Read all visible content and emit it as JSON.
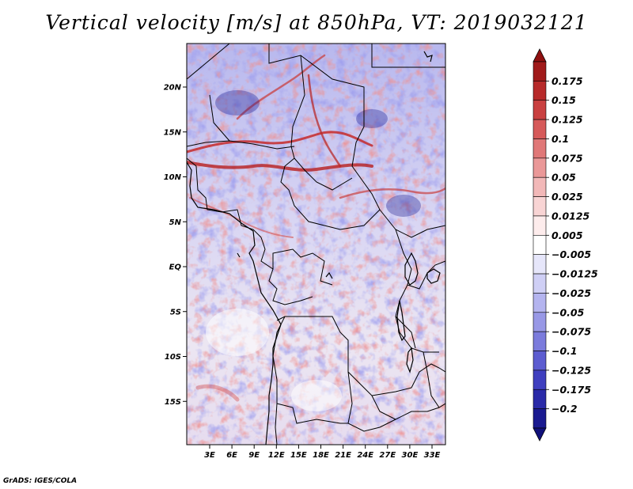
{
  "title": "Vertical velocity [m/s] at 850hPa, VT: 2019032121",
  "credit": "GrADS: IGES/COLA",
  "map": {
    "lat_labels": [
      "20N",
      "15N",
      "10N",
      "5N",
      "EQ",
      "5S",
      "10S",
      "15S"
    ],
    "lat_values": [
      20,
      15,
      10,
      5,
      0,
      -5,
      -10,
      -15
    ],
    "lon_labels": [
      "3E",
      "6E",
      "9E",
      "12E",
      "15E",
      "18E",
      "21E",
      "24E",
      "27E",
      "30E",
      "33E"
    ],
    "lon_values": [
      3,
      6,
      9,
      12,
      15,
      18,
      21,
      24,
      27,
      30,
      33
    ],
    "lat_range": [
      -20,
      25
    ],
    "lon_range": [
      0,
      35
    ]
  },
  "colorbar": {
    "labels": [
      "0.175",
      "0.15",
      "0.125",
      "0.1",
      "0.075",
      "0.05",
      "0.025",
      "0.0125",
      "0.005",
      "−0.005",
      "−0.0125",
      "−0.025",
      "−0.05",
      "−0.075",
      "−0.1",
      "−0.125",
      "−0.175",
      "−0.2"
    ],
    "colors": [
      "#a01a1a",
      "#b72a2a",
      "#c94040",
      "#d65a5a",
      "#e07878",
      "#ea9898",
      "#f2b8b8",
      "#f8d4d4",
      "#fdecec",
      "#ffffff",
      "#e6e6fa",
      "#cfcff5",
      "#b4b4ef",
      "#9898e6",
      "#7b7bdc",
      "#5c5cd0",
      "#3f3fbf",
      "#2a2aa8",
      "#1a1a90"
    ],
    "top_color": "#8f1010",
    "bottom_color": "#10107a"
  }
}
